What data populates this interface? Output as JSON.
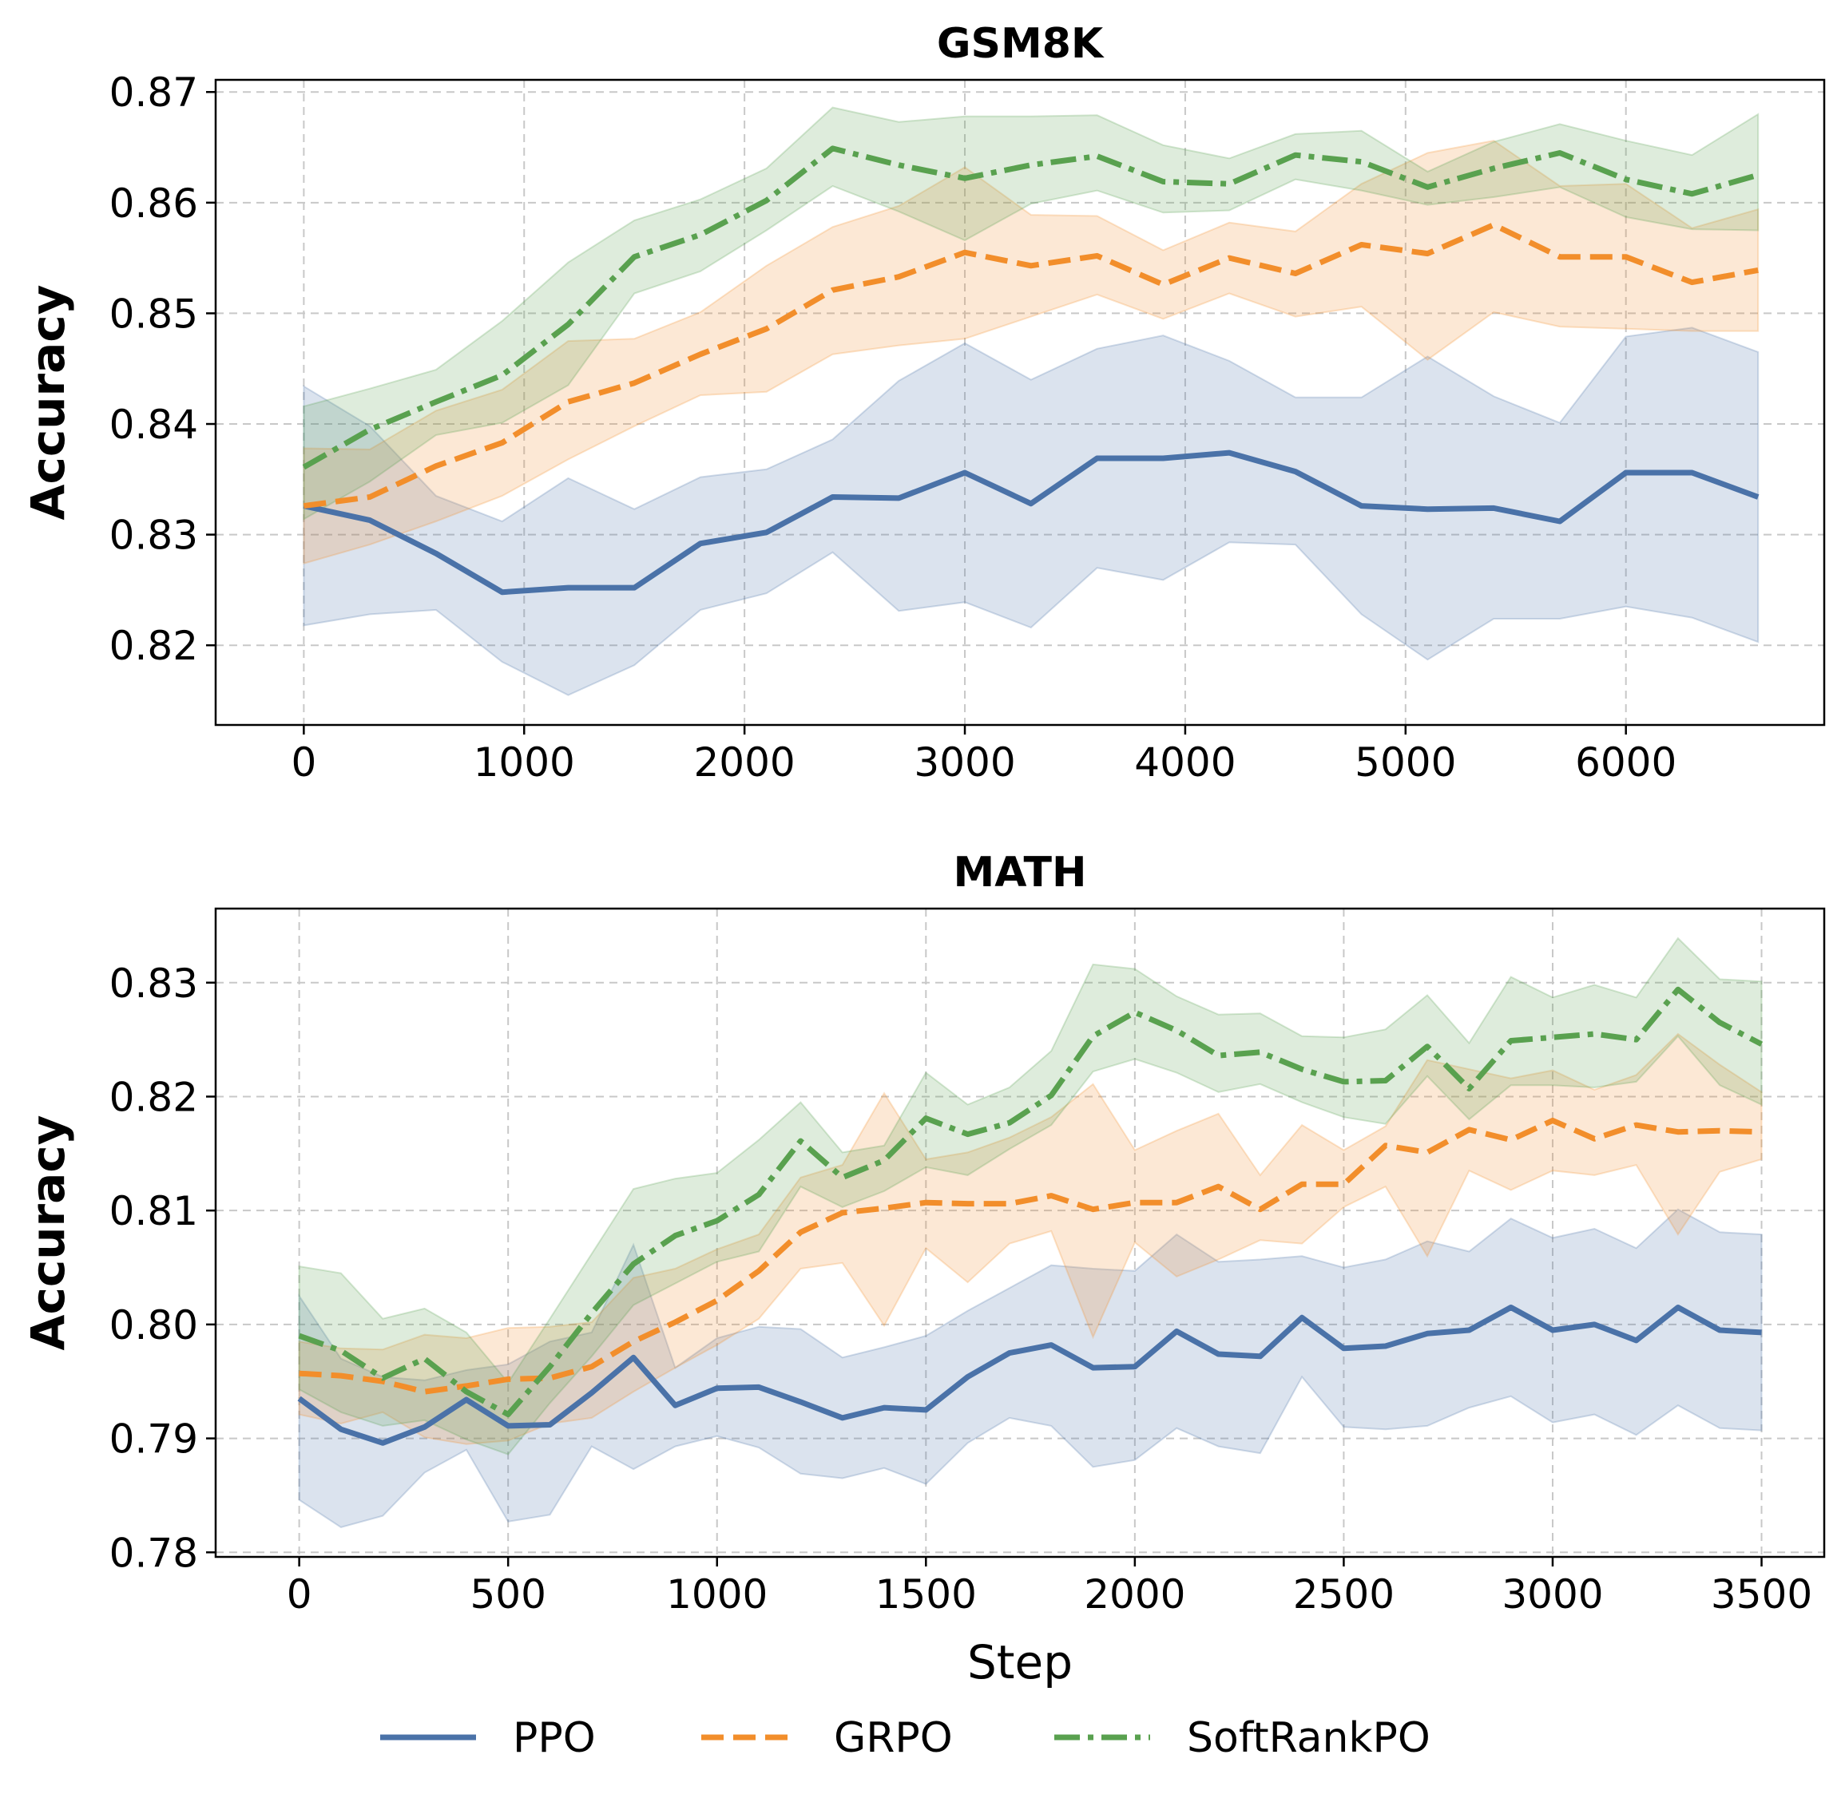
{
  "colors": {
    "ppo": "#4a72a8",
    "grpo": "#f28e2b",
    "softrankpo": "#59a14f"
  },
  "legend": [
    {
      "key": "ppo",
      "label": "PPO",
      "style": "solid"
    },
    {
      "key": "grpo",
      "label": "GRPO",
      "style": "dashed"
    },
    {
      "key": "softrankpo",
      "label": "SoftRankPO",
      "style": "dashdot"
    }
  ],
  "chart_data": [
    {
      "type": "line",
      "title": "GSM8K",
      "xlabel": "",
      "ylabel": "Accuracy",
      "xlim": [
        -400,
        6900
      ],
      "ylim": [
        0.8128,
        0.8711
      ],
      "xticks": [
        0,
        1000,
        2000,
        3000,
        4000,
        5000,
        6000
      ],
      "xtick_labels": [
        "0",
        "1000",
        "2000",
        "3000",
        "4000",
        "5000",
        "6000"
      ],
      "yticks": [
        0.82,
        0.83,
        0.84,
        0.85,
        0.86,
        0.87
      ],
      "ytick_labels": [
        "0.82",
        "0.83",
        "0.84",
        "0.85",
        "0.86",
        "0.87"
      ],
      "grid": true,
      "x": [
        0,
        300,
        600,
        900,
        1200,
        1500,
        1800,
        2100,
        2400,
        2700,
        3000,
        3300,
        3600,
        3900,
        4200,
        4500,
        4800,
        5100,
        5400,
        5700,
        6000,
        6300,
        6600
      ],
      "series": [
        {
          "name": "PPO",
          "key": "ppo",
          "values": [
            0.8326,
            0.8313,
            0.8283,
            0.8248,
            0.8252,
            0.8252,
            0.8292,
            0.8302,
            0.8334,
            0.8333,
            0.8356,
            0.8328,
            0.8369,
            0.8369,
            0.8374,
            0.8357,
            0.8326,
            0.8323,
            0.8324,
            0.8312,
            0.8356,
            0.8356,
            0.8334
          ],
          "lower": [
            0.8218,
            0.8228,
            0.8232,
            0.8185,
            0.8155,
            0.8182,
            0.8232,
            0.8247,
            0.8284,
            0.8231,
            0.8239,
            0.8216,
            0.827,
            0.8259,
            0.8293,
            0.8291,
            0.8228,
            0.8187,
            0.8224,
            0.8224,
            0.8235,
            0.8225,
            0.8203
          ],
          "upper": [
            0.8434,
            0.8398,
            0.8335,
            0.8312,
            0.8351,
            0.8323,
            0.8352,
            0.8359,
            0.8386,
            0.8439,
            0.8473,
            0.844,
            0.8468,
            0.848,
            0.8457,
            0.8424,
            0.8424,
            0.8461,
            0.8425,
            0.8401,
            0.8479,
            0.8487,
            0.8465
          ]
        },
        {
          "name": "GRPO",
          "key": "grpo",
          "values": [
            0.8326,
            0.8334,
            0.8362,
            0.8383,
            0.842,
            0.8437,
            0.8463,
            0.8486,
            0.8521,
            0.8533,
            0.8555,
            0.8543,
            0.8552,
            0.8526,
            0.855,
            0.8536,
            0.8562,
            0.8554,
            0.858,
            0.8551,
            0.8551,
            0.8528,
            0.8539
          ],
          "lower": [
            0.8274,
            0.8291,
            0.8312,
            0.8335,
            0.8368,
            0.8398,
            0.8426,
            0.8429,
            0.8463,
            0.8471,
            0.8477,
            0.8497,
            0.8517,
            0.8495,
            0.8518,
            0.8497,
            0.8506,
            0.8458,
            0.8501,
            0.8488,
            0.8486,
            0.8484,
            0.8484
          ],
          "upper": [
            0.8378,
            0.8377,
            0.8412,
            0.8431,
            0.8475,
            0.8477,
            0.8501,
            0.8543,
            0.8578,
            0.8597,
            0.8632,
            0.8589,
            0.8588,
            0.8557,
            0.8582,
            0.8574,
            0.8617,
            0.8645,
            0.8656,
            0.8615,
            0.8617,
            0.8577,
            0.8594
          ]
        },
        {
          "name": "SoftRankPO",
          "key": "softrankpo",
          "values": [
            0.8361,
            0.8395,
            0.842,
            0.8444,
            0.849,
            0.8551,
            0.8571,
            0.8602,
            0.8649,
            0.8634,
            0.8622,
            0.8634,
            0.8642,
            0.8619,
            0.8617,
            0.8643,
            0.8637,
            0.8614,
            0.8631,
            0.8645,
            0.8621,
            0.8608,
            0.8625
          ],
          "lower": [
            0.8314,
            0.8348,
            0.839,
            0.8401,
            0.8435,
            0.8518,
            0.8538,
            0.8575,
            0.8615,
            0.8592,
            0.8566,
            0.8599,
            0.8611,
            0.8591,
            0.8593,
            0.8621,
            0.8611,
            0.8598,
            0.8605,
            0.8614,
            0.8587,
            0.8576,
            0.8575
          ],
          "upper": [
            0.8416,
            0.8432,
            0.8449,
            0.8493,
            0.8546,
            0.8584,
            0.8603,
            0.8631,
            0.8686,
            0.8673,
            0.8678,
            0.8678,
            0.8679,
            0.8652,
            0.864,
            0.8662,
            0.8665,
            0.8628,
            0.8655,
            0.8671,
            0.8656,
            0.8643,
            0.868
          ]
        }
      ]
    },
    {
      "type": "line",
      "title": "MATH",
      "xlabel": "Step",
      "ylabel": "Accuracy",
      "xlim": [
        -200,
        3650
      ],
      "ylim": [
        0.7796,
        0.8365
      ],
      "xticks": [
        0,
        500,
        1000,
        1500,
        2000,
        2500,
        3000,
        3500
      ],
      "xtick_labels": [
        "0",
        "500",
        "1000",
        "1500",
        "2000",
        "2500",
        "3000",
        "3500"
      ],
      "yticks": [
        0.78,
        0.79,
        0.8,
        0.81,
        0.82,
        0.83
      ],
      "ytick_labels": [
        "0.78",
        "0.79",
        "0.80",
        "0.81",
        "0.82",
        "0.83"
      ],
      "grid": true,
      "x": [
        0,
        100,
        200,
        300,
        400,
        500,
        600,
        700,
        800,
        900,
        1000,
        1100,
        1200,
        1300,
        1400,
        1500,
        1600,
        1700,
        1800,
        1900,
        2000,
        2100,
        2200,
        2300,
        2400,
        2500,
        2600,
        2700,
        2800,
        2900,
        3000,
        3100,
        3200,
        3300,
        3400,
        3500
      ],
      "series": [
        {
          "name": "PPO",
          "key": "ppo",
          "values": [
            0.7935,
            0.7908,
            0.7896,
            0.791,
            0.7934,
            0.7911,
            0.7912,
            0.794,
            0.7971,
            0.7929,
            0.7944,
            0.7945,
            0.7932,
            0.7918,
            0.7927,
            0.7925,
            0.7954,
            0.7975,
            0.7982,
            0.7962,
            0.7963,
            0.7994,
            0.7974,
            0.7972,
            0.8006,
            0.7979,
            0.7981,
            0.7992,
            0.7995,
            0.8015,
            0.7995,
            0.8,
            0.7986,
            0.8015,
            0.7995,
            0.7993
          ],
          "lower": [
            0.7846,
            0.7822,
            0.7832,
            0.787,
            0.789,
            0.7827,
            0.7833,
            0.7893,
            0.7873,
            0.7893,
            0.7902,
            0.7892,
            0.7869,
            0.7865,
            0.7874,
            0.786,
            0.7896,
            0.7918,
            0.7911,
            0.7875,
            0.7881,
            0.7909,
            0.7893,
            0.7887,
            0.7954,
            0.791,
            0.7908,
            0.7911,
            0.7927,
            0.7937,
            0.7914,
            0.7921,
            0.7903,
            0.7929,
            0.7909,
            0.7907
          ],
          "upper": [
            0.8025,
            0.797,
            0.7954,
            0.7951,
            0.796,
            0.7965,
            0.7985,
            0.7993,
            0.807,
            0.7962,
            0.7988,
            0.7998,
            0.7996,
            0.7971,
            0.798,
            0.799,
            0.8012,
            0.8032,
            0.8052,
            0.8049,
            0.8047,
            0.8079,
            0.8055,
            0.8057,
            0.806,
            0.805,
            0.8057,
            0.8073,
            0.8064,
            0.8093,
            0.8076,
            0.8084,
            0.8067,
            0.8101,
            0.8081,
            0.8079
          ]
        },
        {
          "name": "GRPO",
          "key": "grpo",
          "values": [
            0.7957,
            0.7955,
            0.795,
            0.7941,
            0.7946,
            0.7952,
            0.7953,
            0.7963,
            0.7985,
            0.8002,
            0.8021,
            0.8047,
            0.8081,
            0.8098,
            0.8102,
            0.8107,
            0.8106,
            0.8106,
            0.8113,
            0.8101,
            0.8107,
            0.8107,
            0.8121,
            0.8101,
            0.8123,
            0.8123,
            0.8157,
            0.8151,
            0.8171,
            0.8162,
            0.8179,
            0.8163,
            0.8175,
            0.8169,
            0.817,
            0.8169
          ],
          "lower": [
            0.7921,
            0.7913,
            0.7923,
            0.7901,
            0.7895,
            0.7898,
            0.7913,
            0.7918,
            0.7941,
            0.7962,
            0.7982,
            0.8005,
            0.8049,
            0.8054,
            0.7999,
            0.8067,
            0.8037,
            0.8071,
            0.8082,
            0.7989,
            0.8072,
            0.8042,
            0.8057,
            0.8074,
            0.8071,
            0.8103,
            0.8121,
            0.806,
            0.8135,
            0.8118,
            0.8135,
            0.8131,
            0.814,
            0.8079,
            0.8134,
            0.8145
          ],
          "upper": [
            0.7985,
            0.7979,
            0.7978,
            0.7991,
            0.7988,
            0.7997,
            0.7998,
            0.8002,
            0.8041,
            0.8049,
            0.8066,
            0.8079,
            0.8129,
            0.814,
            0.8203,
            0.8145,
            0.8151,
            0.8164,
            0.8182,
            0.8211,
            0.8153,
            0.817,
            0.8185,
            0.8131,
            0.8175,
            0.8153,
            0.8174,
            0.8232,
            0.8224,
            0.8216,
            0.8223,
            0.8206,
            0.8219,
            0.8255,
            0.8228,
            0.8204
          ]
        },
        {
          "name": "SoftRankPO",
          "key": "softrankpo",
          "values": [
            0.799,
            0.7977,
            0.7953,
            0.797,
            0.7941,
            0.7921,
            0.7963,
            0.801,
            0.8053,
            0.8078,
            0.8091,
            0.8114,
            0.8161,
            0.8129,
            0.8144,
            0.8181,
            0.8167,
            0.8177,
            0.8201,
            0.8253,
            0.8274,
            0.8258,
            0.8236,
            0.8239,
            0.8224,
            0.8213,
            0.8214,
            0.8244,
            0.8207,
            0.8249,
            0.8252,
            0.8255,
            0.825,
            0.8294,
            0.8265,
            0.8246
          ],
          "lower": [
            0.7943,
            0.7923,
            0.7911,
            0.7916,
            0.7899,
            0.7886,
            0.7931,
            0.7972,
            0.8017,
            0.8036,
            0.8055,
            0.8064,
            0.8121,
            0.8103,
            0.8117,
            0.8138,
            0.8131,
            0.8154,
            0.8175,
            0.8222,
            0.8233,
            0.8221,
            0.8204,
            0.8211,
            0.8195,
            0.8182,
            0.8176,
            0.8218,
            0.818,
            0.821,
            0.821,
            0.8208,
            0.8213,
            0.8253,
            0.821,
            0.8193
          ],
          "upper": [
            0.8051,
            0.8045,
            0.8005,
            0.8014,
            0.7993,
            0.7949,
            0.8005,
            0.8062,
            0.8119,
            0.8128,
            0.8133,
            0.8162,
            0.8195,
            0.8151,
            0.8157,
            0.8221,
            0.8193,
            0.8208,
            0.824,
            0.8316,
            0.8312,
            0.8288,
            0.8272,
            0.8273,
            0.8253,
            0.8252,
            0.8259,
            0.8289,
            0.8247,
            0.8305,
            0.8287,
            0.8298,
            0.8287,
            0.8339,
            0.8303,
            0.8301
          ]
        }
      ]
    }
  ]
}
